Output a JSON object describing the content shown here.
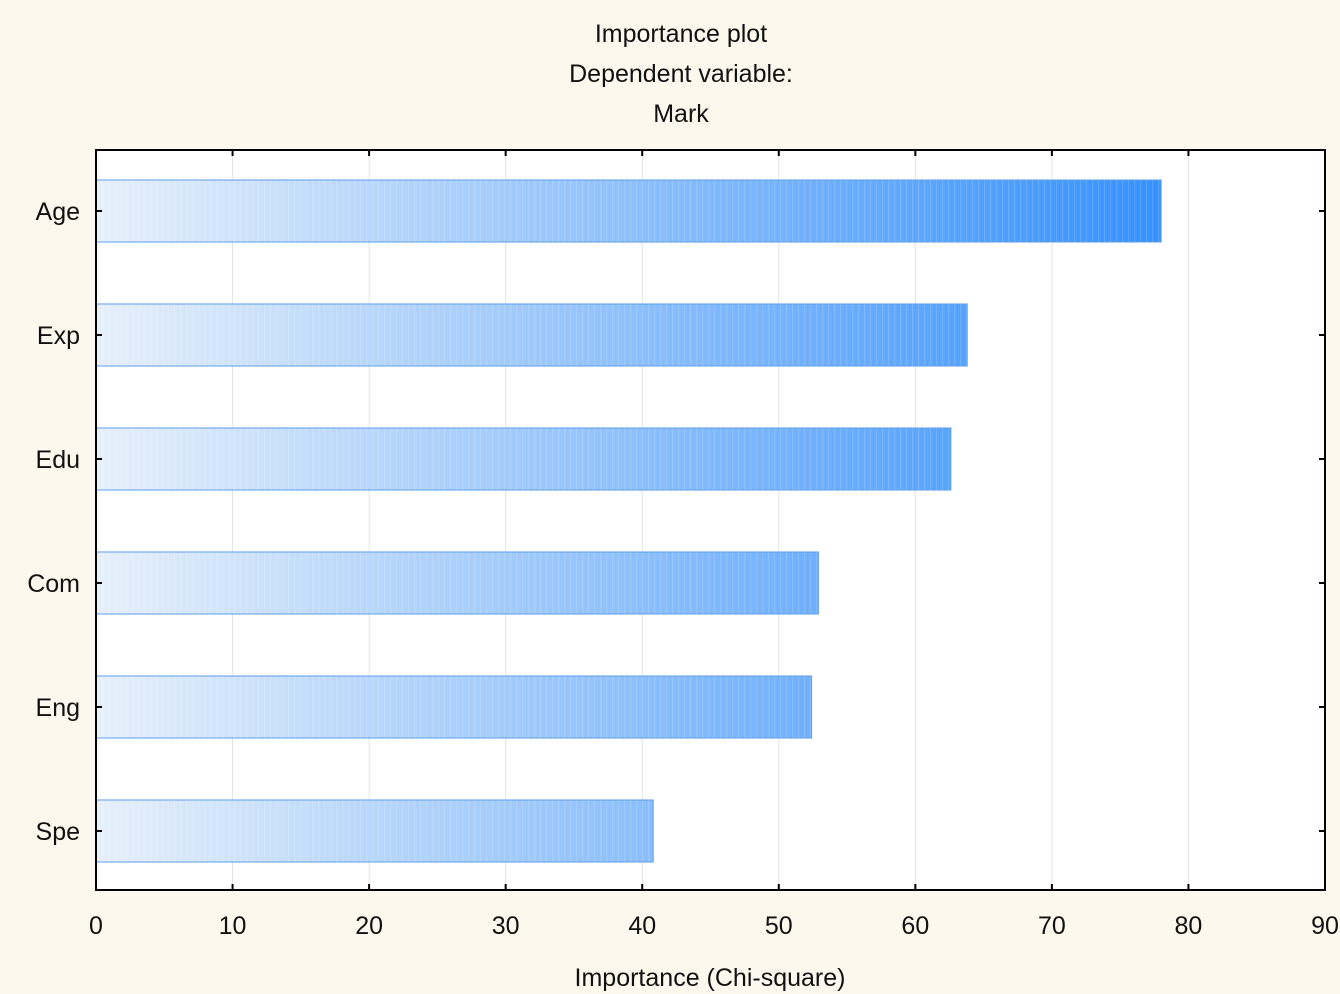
{
  "chart_data": {
    "type": "bar",
    "orientation": "horizontal",
    "title_lines": [
      "Importance plot",
      "Dependent variable:",
      "Mark"
    ],
    "categories": [
      "Age",
      "Exp",
      "Edu",
      "Com",
      "Eng",
      "Spe"
    ],
    "values": [
      78,
      63.8,
      62.6,
      52.9,
      52.4,
      40.8
    ],
    "xlabel": "Importance (Chi-square)",
    "ylabel": "",
    "xlim": [
      0,
      90
    ],
    "xticks": [
      0,
      10,
      20,
      30,
      40,
      50,
      60,
      70,
      80,
      90
    ],
    "grid": "vertical",
    "legend": "none",
    "colors": {
      "background": "#fdf8ed",
      "plot_background": "#ffffff",
      "bar_start": "#e6f0fb",
      "bar_end": "#2a8cfb",
      "bar_border": "#5a9ee8",
      "gridline": "#e2e2e2",
      "axis": "#000000"
    }
  }
}
